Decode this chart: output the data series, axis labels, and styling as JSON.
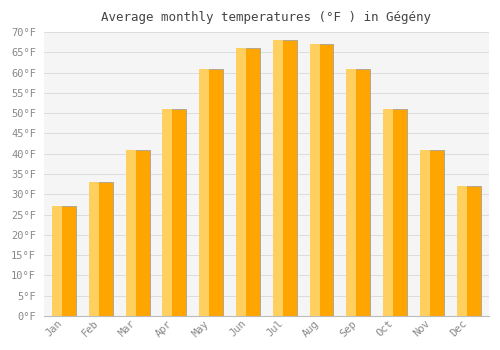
{
  "title": "Average monthly temperatures (°F ) in Gégény",
  "months": [
    "Jan",
    "Feb",
    "Mar",
    "Apr",
    "May",
    "Jun",
    "Jul",
    "Aug",
    "Sep",
    "Oct",
    "Nov",
    "Dec"
  ],
  "values": [
    27,
    33,
    41,
    51,
    61,
    66,
    68,
    67,
    61,
    51,
    41,
    32
  ],
  "bar_color_main": "#FFA500",
  "bar_color_light": "#FFD060",
  "bar_edge_color": "#999999",
  "ylim": [
    0,
    70
  ],
  "ytick_step": 5,
  "background_color": "#ffffff",
  "plot_bg_color": "#f5f5f5",
  "grid_color": "#dddddd",
  "tick_color": "#888888",
  "title_color": "#444444",
  "font_family": "monospace",
  "title_fontsize": 9,
  "tick_fontsize": 7.5
}
